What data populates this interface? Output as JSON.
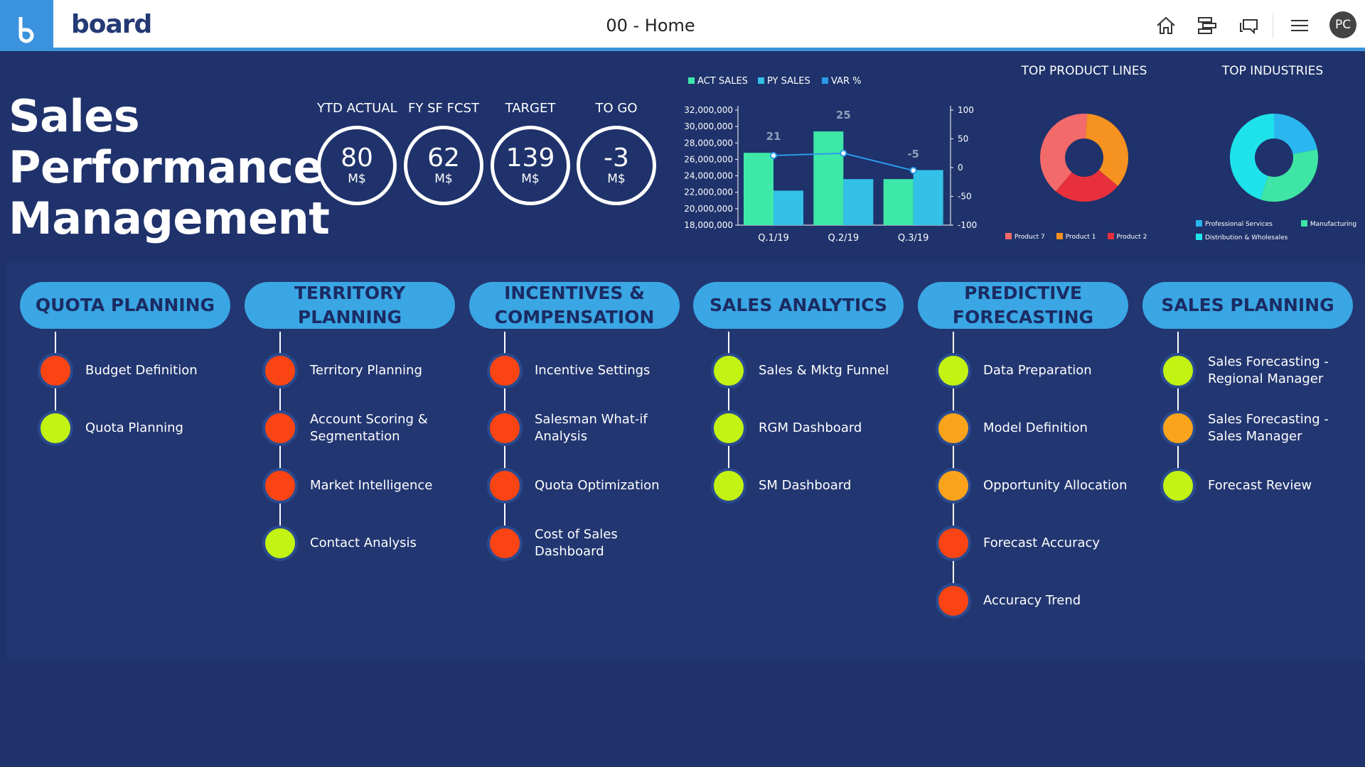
{
  "topbar": {
    "logo_word": "board",
    "logo_letter": "b",
    "page_title": "00 - Home",
    "avatar_initials": "PC",
    "icons": [
      "home-icon",
      "tree-menu-icon",
      "chat-icon",
      "hamburger-menu-icon"
    ]
  },
  "header": {
    "title_lines": [
      "Sales",
      "Performance",
      "Management"
    ],
    "kpis": [
      {
        "label": "YTD ACTUAL",
        "value": "80",
        "unit": "M$"
      },
      {
        "label": "FY SF FCST",
        "value": "62",
        "unit": "M$"
      },
      {
        "label": "TARGET",
        "value": "139",
        "unit": "M$"
      },
      {
        "label": "TO GO",
        "value": "-3",
        "unit": "M$"
      }
    ]
  },
  "chart_data": [
    {
      "type": "bar",
      "categories": [
        "Q.1/19",
        "Q.2/19",
        "Q.3/19"
      ],
      "series": [
        {
          "name": "ACT SALES",
          "values": [
            26800000,
            29400000,
            23600000
          ],
          "color": "#3ee8a8"
        },
        {
          "name": "PY SALES",
          "values": [
            22200000,
            23600000,
            24700000
          ],
          "color": "#33c1e8"
        },
        {
          "name": "VAR %",
          "type": "line",
          "axis": "right",
          "values": [
            21,
            25,
            -5
          ],
          "color": "#2a9ae8"
        }
      ],
      "ylim": [
        18000000,
        32000000
      ],
      "y_ticks": [
        "18,000,000",
        "20,000,000",
        "22,000,000",
        "24,000,000",
        "26,000,000",
        "28,000,000",
        "30,000,000",
        "32,000,000"
      ],
      "y2lim": [
        -100,
        100
      ],
      "y2_ticks": [
        "-100",
        "-50",
        "0",
        "50",
        "100"
      ],
      "data_labels": [
        "21",
        "25",
        "-5"
      ],
      "legend": "top"
    },
    {
      "type": "pie",
      "title": "TOP PRODUCT LINES",
      "labels": [
        "Product 7",
        "Product 1",
        "Product 2"
      ],
      "values": [
        40,
        35,
        25
      ],
      "colors": [
        "#f26a6a",
        "#f59220",
        "#e8303c"
      ],
      "legend": "bottom"
    },
    {
      "type": "pie",
      "title": "TOP INDUSTRIES",
      "labels": [
        "Professional Services",
        "Manufacturing",
        "Distribution & Wholesales"
      ],
      "values": [
        22,
        33,
        45
      ],
      "colors": [
        "#2ab6ee",
        "#3ee5a4",
        "#1fe3ea"
      ],
      "legend": "bottom"
    }
  ],
  "columns": [
    {
      "title": "QUOTA PLANNING",
      "items": [
        {
          "label": "Budget Definition",
          "status": "red"
        },
        {
          "label": "Quota Planning",
          "status": "green"
        }
      ]
    },
    {
      "title": "TERRITORY PLANNING",
      "items": [
        {
          "label": "Territory Planning",
          "status": "red"
        },
        {
          "label": "Account Scoring & Segmentation",
          "status": "red"
        },
        {
          "label": "Market Intelligence",
          "status": "red"
        },
        {
          "label": "Contact Analysis",
          "status": "green"
        }
      ]
    },
    {
      "title": "INCENTIVES & COMPENSATION",
      "items": [
        {
          "label": "Incentive Settings",
          "status": "red"
        },
        {
          "label": "Salesman What-if Analysis",
          "status": "red"
        },
        {
          "label": "Quota Optimization",
          "status": "red"
        },
        {
          "label": "Cost of Sales Dashboard",
          "status": "red"
        }
      ]
    },
    {
      "title": "SALES ANALYTICS",
      "items": [
        {
          "label": "Sales & Mktg Funnel",
          "status": "green"
        },
        {
          "label": "RGM Dashboard",
          "status": "green"
        },
        {
          "label": "SM Dashboard",
          "status": "green"
        }
      ]
    },
    {
      "title": "PREDICTIVE FORECASTING",
      "items": [
        {
          "label": "Data Preparation",
          "status": "green"
        },
        {
          "label": "Model Definition",
          "status": "orange"
        },
        {
          "label": "Opportunity Allocation",
          "status": "orange"
        },
        {
          "label": "Forecast Accuracy",
          "status": "red"
        },
        {
          "label": "Accuracy Trend",
          "status": "red"
        }
      ]
    },
    {
      "title": "SALES PLANNING",
      "items": [
        {
          "label": "Sales Forecasting - Regional Manager",
          "status": "green"
        },
        {
          "label": "Sales Forecasting - Sales Manager",
          "status": "orange"
        },
        {
          "label": "Forecast Review",
          "status": "green"
        }
      ]
    }
  ]
}
